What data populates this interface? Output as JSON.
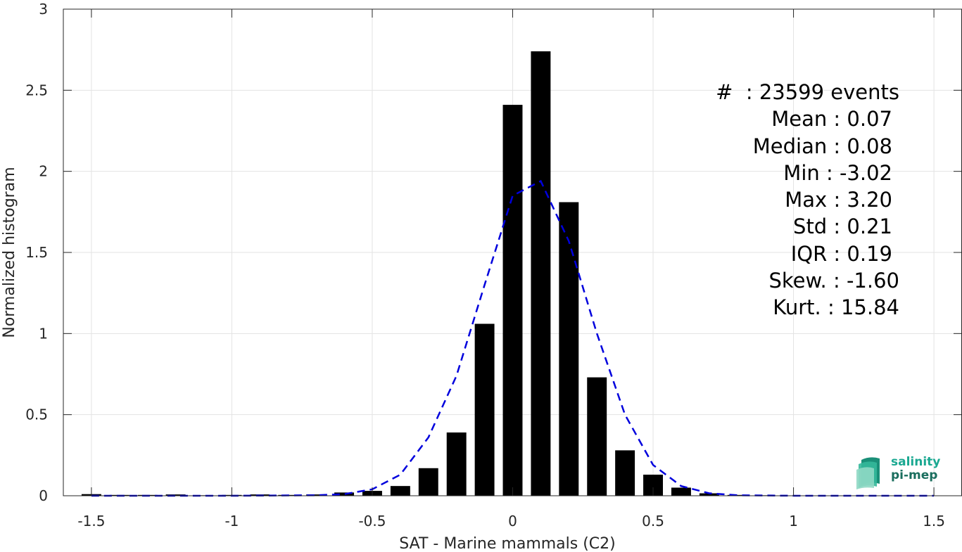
{
  "chart_data": {
    "type": "bar",
    "xlabel": "SAT - Marine mammals (C2)",
    "ylabel": "Normalized histogram",
    "xlim": [
      -1.6,
      1.6
    ],
    "ylim": [
      0,
      3
    ],
    "xticks": [
      "-1.5",
      "-1",
      "-0.5",
      "0",
      "0.5",
      "1",
      "1.5"
    ],
    "xtick_values": [
      -1.5,
      -1,
      -0.5,
      0,
      0.5,
      1,
      1.5
    ],
    "yticks": [
      "0",
      "0.5",
      "1",
      "1.5",
      "2",
      "2.5",
      "3"
    ],
    "ytick_values": [
      0,
      0.5,
      1,
      1.5,
      2,
      2.5,
      3
    ],
    "grid": true,
    "bar_width": 0.07,
    "bars": [
      {
        "x": -1.5,
        "y": 0.01
      },
      {
        "x": -1.4,
        "y": 0.005
      },
      {
        "x": -1.3,
        "y": 0.005
      },
      {
        "x": -1.2,
        "y": 0.008
      },
      {
        "x": -1.1,
        "y": 0.003
      },
      {
        "x": -1.0,
        "y": 0.005
      },
      {
        "x": -0.9,
        "y": 0.008
      },
      {
        "x": -0.8,
        "y": 0.005
      },
      {
        "x": -0.7,
        "y": 0.008
      },
      {
        "x": -0.6,
        "y": 0.02
      },
      {
        "x": -0.5,
        "y": 0.03
      },
      {
        "x": -0.4,
        "y": 0.06
      },
      {
        "x": -0.3,
        "y": 0.17
      },
      {
        "x": -0.2,
        "y": 0.39
      },
      {
        "x": -0.1,
        "y": 1.06
      },
      {
        "x": 0.0,
        "y": 2.41
      },
      {
        "x": 0.1,
        "y": 2.74
      },
      {
        "x": 0.2,
        "y": 1.81
      },
      {
        "x": 0.3,
        "y": 0.73
      },
      {
        "x": 0.4,
        "y": 0.28
      },
      {
        "x": 0.5,
        "y": 0.13
      },
      {
        "x": 0.6,
        "y": 0.05
      },
      {
        "x": 0.7,
        "y": 0.015
      },
      {
        "x": 0.8,
        "y": 0.005
      },
      {
        "x": 0.9,
        "y": 0.003
      },
      {
        "x": 1.0,
        "y": 0.002
      },
      {
        "x": 1.1,
        "y": 0.002
      },
      {
        "x": 1.2,
        "y": 0.002
      },
      {
        "x": 1.3,
        "y": 0.002
      },
      {
        "x": 1.4,
        "y": 0.002
      },
      {
        "x": 1.5,
        "y": 0.002
      }
    ],
    "fit_curve": {
      "color": "#0000dd",
      "style": "dashed",
      "points": [
        [
          -1.5,
          0.0
        ],
        [
          -1.0,
          0.0
        ],
        [
          -0.7,
          0.003
        ],
        [
          -0.6,
          0.01
        ],
        [
          -0.5,
          0.04
        ],
        [
          -0.4,
          0.13
        ],
        [
          -0.3,
          0.36
        ],
        [
          -0.2,
          0.74
        ],
        [
          -0.1,
          1.3
        ],
        [
          0.0,
          1.85
        ],
        [
          0.1,
          1.94
        ],
        [
          0.2,
          1.57
        ],
        [
          0.3,
          1.0
        ],
        [
          0.4,
          0.5
        ],
        [
          0.5,
          0.19
        ],
        [
          0.6,
          0.06
        ],
        [
          0.7,
          0.015
        ],
        [
          0.8,
          0.003
        ],
        [
          1.0,
          0.0
        ],
        [
          1.5,
          0.0
        ]
      ]
    },
    "bar_color": "#000000"
  },
  "stats": {
    "count": "#  : 23599 events",
    "mean": "Mean : 0.07",
    "median": "Median : 0.08",
    "min": "Min : -3.02",
    "max": "Max : 3.20",
    "std": "Std : 0.21",
    "iqr": "IQR : 0.19",
    "skew": "Skew. : -1.60",
    "kurt": "Kurt. : 15.84"
  },
  "logo": {
    "line1": "salinity",
    "line2": "pi-mep",
    "color1": "#1aa891",
    "color2": "#1a6e5e"
  }
}
